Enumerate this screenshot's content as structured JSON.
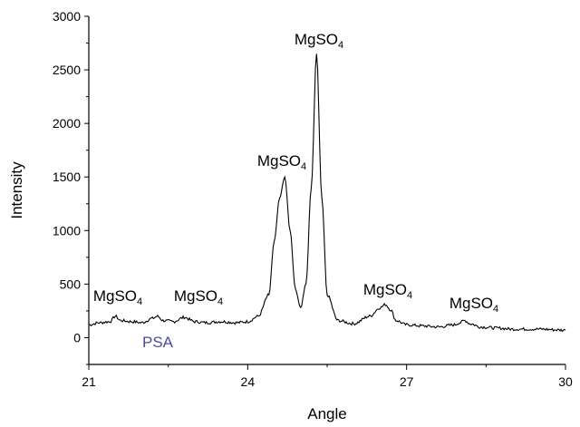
{
  "chart_data": {
    "type": "line",
    "title": "",
    "xlabel": "Angle",
    "ylabel": "Intensity",
    "xlim": [
      21,
      30
    ],
    "ylim": [
      -250,
      3000
    ],
    "xticks": [
      21,
      24,
      27,
      30
    ],
    "yticks": [
      0,
      500,
      1000,
      1500,
      2000,
      2500,
      3000
    ],
    "grid": false,
    "series": [
      {
        "color": "#000000",
        "x": [
          21.0,
          21.2,
          21.4,
          21.5,
          21.6,
          21.8,
          22.0,
          22.2,
          22.3,
          22.4,
          22.6,
          22.8,
          23.0,
          23.2,
          23.5,
          23.8,
          24.0,
          24.2,
          24.4,
          24.5,
          24.6,
          24.7,
          24.8,
          24.9,
          25.0,
          25.1,
          25.2,
          25.3,
          25.4,
          25.5,
          25.7,
          26.0,
          26.3,
          26.5,
          26.6,
          26.7,
          26.8,
          27.0,
          27.3,
          27.6,
          27.9,
          28.0,
          28.1,
          28.2,
          28.4,
          28.7,
          29.0,
          29.5,
          30.0
        ],
        "y": [
          120,
          140,
          150,
          200,
          160,
          150,
          140,
          180,
          200,
          160,
          150,
          190,
          150,
          140,
          150,
          140,
          150,
          200,
          400,
          900,
          1300,
          1500,
          1000,
          450,
          270,
          500,
          1400,
          2650,
          1300,
          400,
          160,
          130,
          200,
          280,
          310,
          260,
          160,
          120,
          110,
          100,
          120,
          140,
          160,
          130,
          100,
          90,
          80,
          80,
          70
        ]
      }
    ],
    "annotations": [
      {
        "formula": "MgSO",
        "subscript": "4"
      },
      {
        "formula": "MgSO",
        "subscript": "4"
      },
      {
        "formula": "MgSO",
        "subscript": "4"
      },
      {
        "formula": "MgSO",
        "subscript": "4"
      },
      {
        "formula": "MgSO",
        "subscript": "4"
      },
      {
        "formula": "MgSO",
        "subscript": "4"
      },
      {
        "text": "PSA",
        "color": "#4a4a9a"
      }
    ]
  }
}
